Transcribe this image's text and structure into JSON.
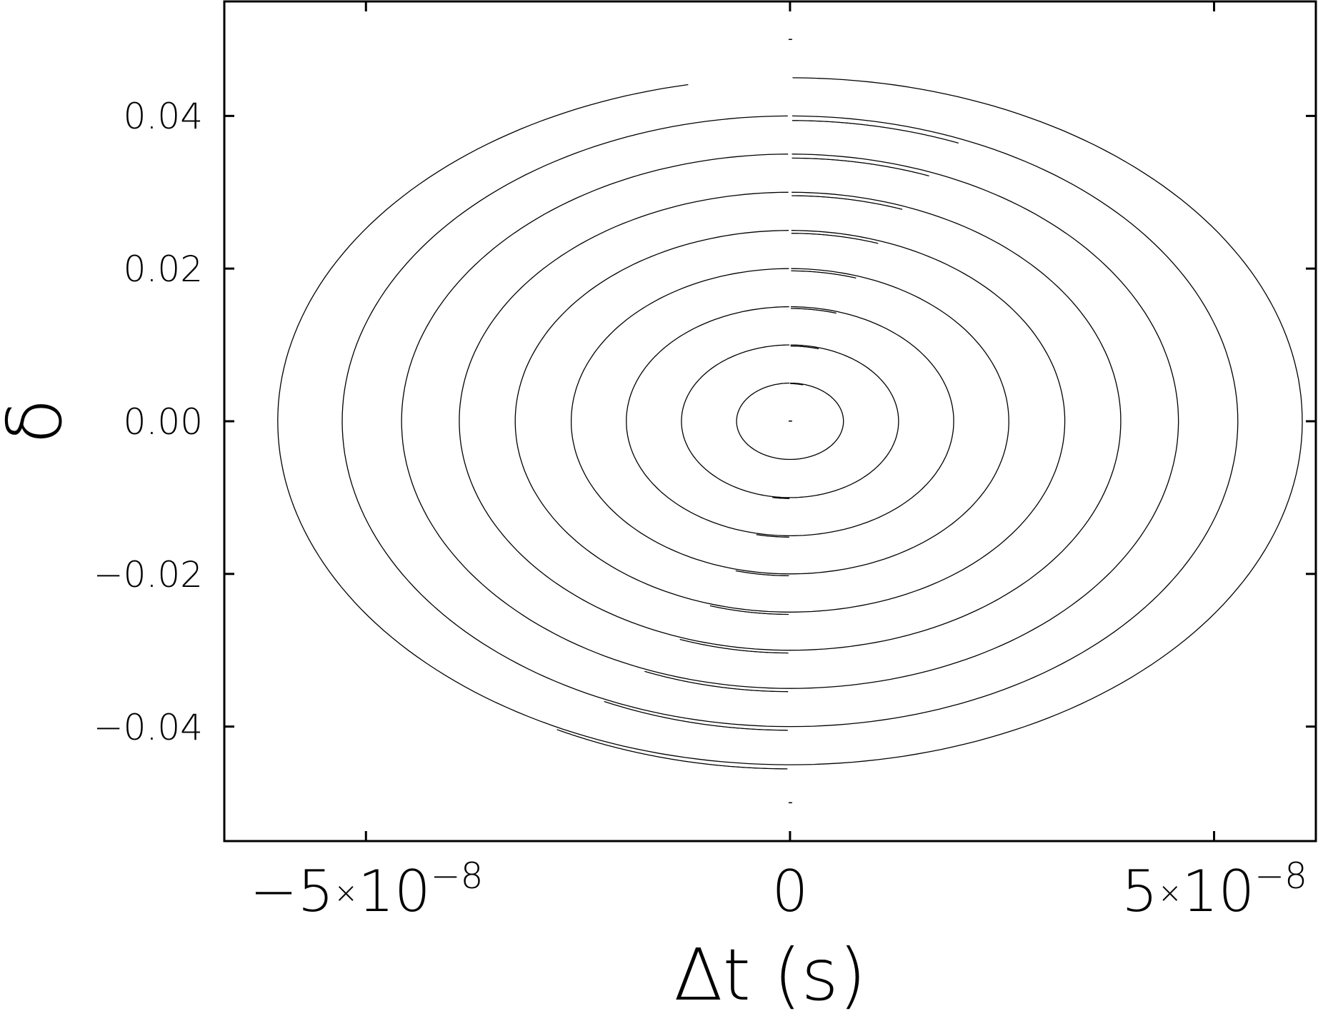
{
  "chart_data": {
    "type": "line",
    "title": "",
    "xlabel": "Δt (s)",
    "ylabel": "δ",
    "xlim": [
      -6.67e-08,
      6.2e-08
    ],
    "ylim": [
      -0.055,
      0.055
    ],
    "grid": false,
    "x_ticks": [
      {
        "value": -5e-08,
        "mantissa": "−5",
        "times": "×",
        "base": "10",
        "exponent": "−8"
      },
      {
        "value": 0,
        "mantissa": "0",
        "times": "",
        "base": "",
        "exponent": ""
      },
      {
        "value": 5e-08,
        "mantissa": "5",
        "times": "×",
        "base": "10",
        "exponent": "−8"
      }
    ],
    "y_ticks": [
      {
        "value": 0.04,
        "label": "0.04"
      },
      {
        "value": 0.02,
        "label": "0.02"
      },
      {
        "value": 0.0,
        "label": "0.00"
      },
      {
        "value": -0.02,
        "label": "−0.02"
      },
      {
        "value": -0.04,
        "label": "−0.04"
      }
    ],
    "series": [
      {
        "dt_amplitude": 6.3e-09,
        "delta_amplitude": 0.005
      },
      {
        "dt_amplitude": 1.28e-08,
        "delta_amplitude": 0.01
      },
      {
        "dt_amplitude": 1.93e-08,
        "delta_amplitude": 0.015
      },
      {
        "dt_amplitude": 2.58e-08,
        "delta_amplitude": 0.02
      },
      {
        "dt_amplitude": 3.24e-08,
        "delta_amplitude": 0.025
      },
      {
        "dt_amplitude": 3.9e-08,
        "delta_amplitude": 0.03
      },
      {
        "dt_amplitude": 4.58e-08,
        "delta_amplitude": 0.035
      },
      {
        "dt_amplitude": 5.28e-08,
        "delta_amplitude": 0.04
      },
      {
        "dt_amplitude": 6.04e-08,
        "delta_amplitude": 0.045
      }
    ],
    "points": [
      [
        0,
        0
      ],
      [
        0,
        0.05
      ],
      [
        0,
        -0.05
      ]
    ],
    "line_color": "#000000"
  }
}
